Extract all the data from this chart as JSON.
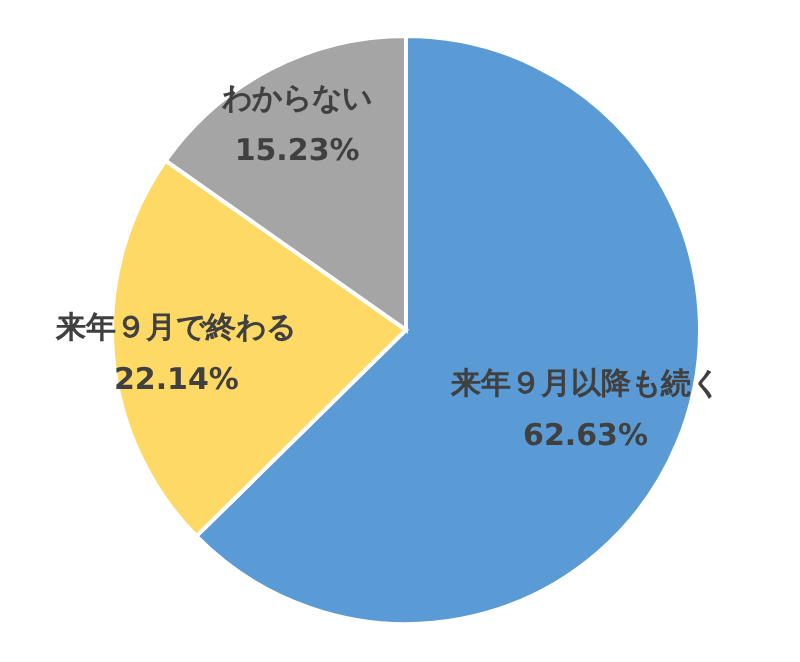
{
  "chart_data": {
    "type": "pie",
    "categories": [
      "来年９月以降も続く",
      "来年９月で終わる",
      "わからない"
    ],
    "values": [
      62.63,
      22.14,
      15.23
    ],
    "colors": [
      "#5b9bd5",
      "#ffd966",
      "#a5a5a5"
    ],
    "value_labels": [
      "62.63%",
      "22.14%",
      "15.23%"
    ]
  }
}
